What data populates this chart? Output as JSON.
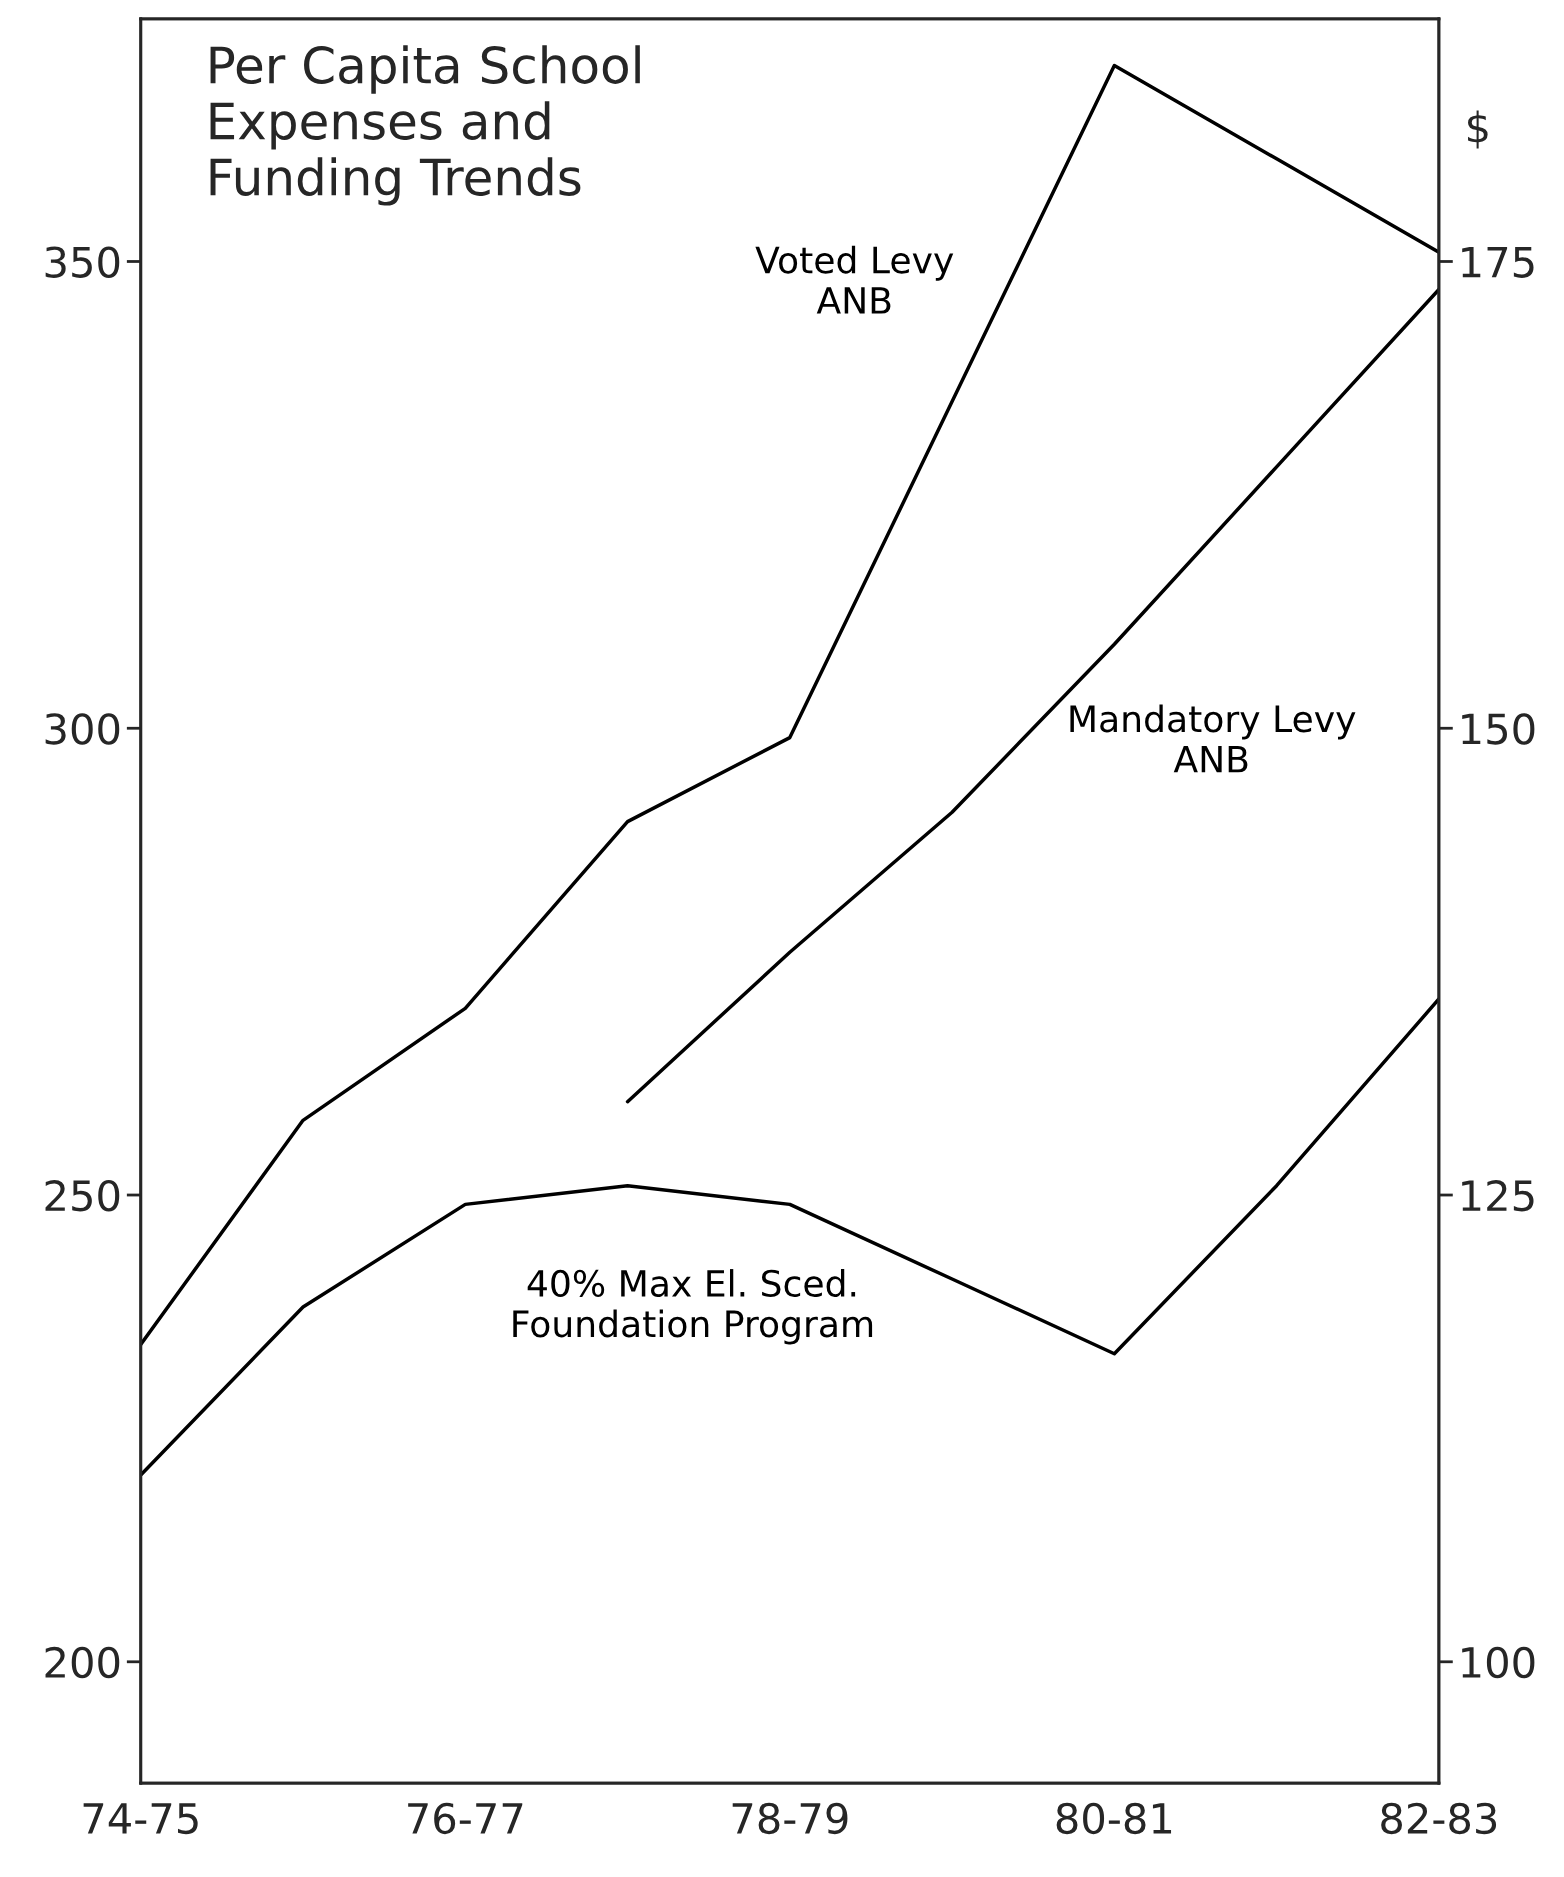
{
  "chart_data": {
    "type": "line",
    "title": "Per Capita School\nExpenses and\nFunding Trends",
    "categories": [
      "74-75",
      null,
      "76-77",
      null,
      "78-79",
      null,
      "80-81",
      null,
      "82-83"
    ],
    "series": [
      {
        "name": "Voted Levy\nANB",
        "color": "#000000",
        "values": [
          234,
          258,
          270,
          290,
          299,
          335,
          371,
          361,
          351
        ]
      },
      {
        "name": "Mandatory Levy\nANB",
        "color": "#000000",
        "values": [
          null,
          null,
          null,
          260,
          276,
          291,
          309,
          328,
          347
        ]
      },
      {
        "name": "40% Max El. Sced.\nFoundation Program",
        "color": "#000000",
        "values": [
          220,
          238,
          249,
          251,
          249,
          241,
          233,
          251,
          271
        ]
      }
    ],
    "ylim": [
      187,
      376
    ],
    "yticks": [
      200,
      250,
      300,
      350
    ],
    "y2lim": [
      93.5,
      188
    ],
    "y2ticks": [
      100,
      125,
      150,
      175
    ],
    "y2label": "$",
    "grid": false,
    "legend": false,
    "marker": "none",
    "line_style": "solid"
  }
}
